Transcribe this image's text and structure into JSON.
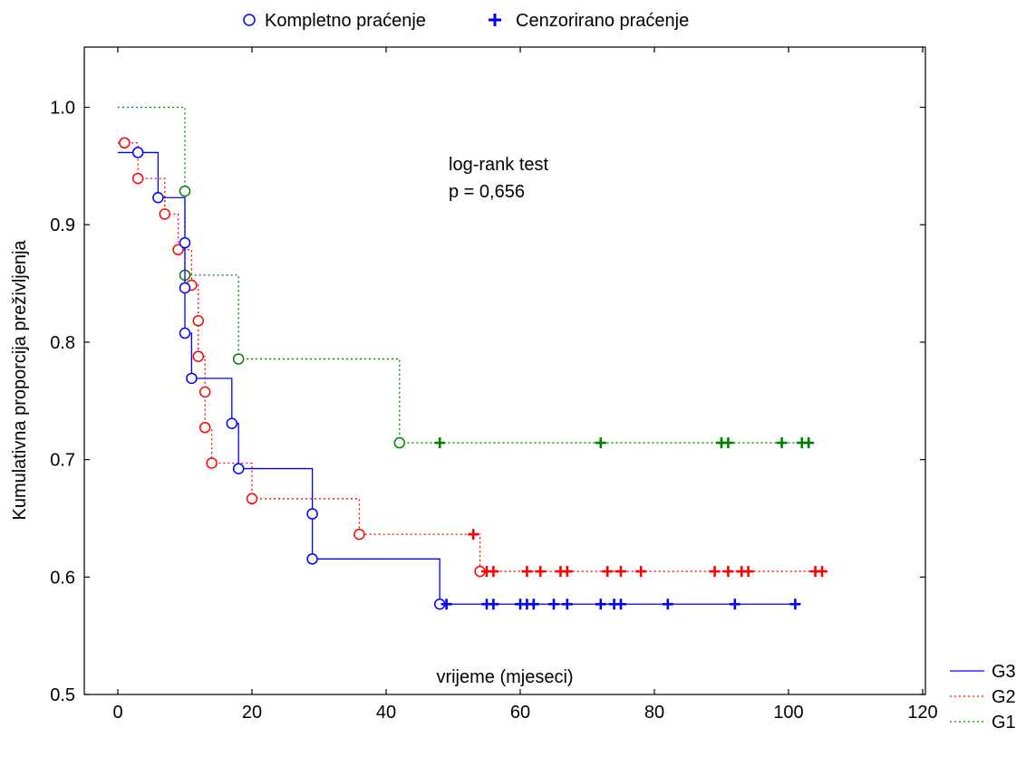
{
  "chart_data": {
    "type": "line",
    "title": "",
    "xlabel": "vrijeme (mjeseci)",
    "ylabel": "Kumulativna proporcija preživljenja",
    "xlim": [
      -5,
      120
    ],
    "ylim": [
      0.5,
      1.05
    ],
    "xticks": [
      0,
      20,
      40,
      60,
      80,
      100,
      120
    ],
    "xtick_labels": [
      "0",
      "20",
      "40",
      "60",
      "80",
      "100",
      "120"
    ],
    "yticks": [
      0.5,
      0.6,
      0.7,
      0.8,
      0.9,
      1.0
    ],
    "ytick_labels": [
      "0.5",
      "0.6",
      "0.7",
      "0.8",
      "0.9",
      "1.0"
    ],
    "marker_legend": {
      "complete_label": "Kompletno praćenje",
      "censored_label": "Cenzorirano praćenje"
    },
    "annotation": [
      "log-rank test",
      "p = 0,656"
    ],
    "series": [
      {
        "name": "G3",
        "color": "#0000ff",
        "line_style": "solid",
        "steps": [
          [
            0,
            0.9615
          ],
          [
            6,
            0.9231
          ],
          [
            10,
            0.8846
          ],
          [
            10,
            0.8462
          ],
          [
            10,
            0.8077
          ],
          [
            11,
            0.7692
          ],
          [
            17,
            0.7308
          ],
          [
            18,
            0.6923
          ],
          [
            29,
            0.6538
          ],
          [
            29,
            0.6154
          ],
          [
            48,
            0.5769
          ]
        ],
        "events": [
          3,
          6,
          10,
          10,
          10,
          11,
          17,
          18,
          29,
          29,
          48
        ],
        "events_y": [
          0.9615,
          0.9231,
          0.8846,
          0.8462,
          0.8077,
          0.7692,
          0.7308,
          0.6923,
          0.6538,
          0.6154,
          0.5769
        ],
        "censored": [
          49,
          55,
          56,
          60,
          61,
          62,
          65,
          67,
          72,
          74,
          75,
          82,
          92,
          101
        ],
        "end_x": 101
      },
      {
        "name": "G2",
        "color": "#ff0000",
        "line_style": "dotted",
        "steps": [
          [
            0,
            0.9697
          ],
          [
            3,
            0.9394
          ],
          [
            7,
            0.9091
          ],
          [
            9,
            0.8788
          ],
          [
            11,
            0.8485
          ],
          [
            12,
            0.8182
          ],
          [
            12,
            0.7879
          ],
          [
            13,
            0.7576
          ],
          [
            13,
            0.7273
          ],
          [
            14,
            0.697
          ],
          [
            20,
            0.6667
          ],
          [
            36,
            0.6364
          ],
          [
            54,
            0.6048
          ]
        ],
        "events": [
          1,
          3,
          7,
          9,
          11,
          12,
          12,
          13,
          13,
          14,
          20,
          36,
          54
        ],
        "events_y": [
          0.9697,
          0.9394,
          0.9091,
          0.8788,
          0.8485,
          0.8182,
          0.7879,
          0.7576,
          0.7273,
          0.697,
          0.6667,
          0.6364,
          0.6048
        ],
        "censored": [
          53,
          55,
          56,
          61,
          63,
          66,
          67,
          73,
          75,
          78,
          89,
          91,
          93,
          94,
          104,
          105
        ],
        "end_x": 105
      },
      {
        "name": "G1",
        "color": "#008000",
        "line_style": "dotted",
        "steps": [
          [
            0,
            1.0
          ],
          [
            10,
            0.9286
          ],
          [
            10,
            0.8571
          ],
          [
            18,
            0.7857
          ],
          [
            42,
            0.7143
          ]
        ],
        "events": [
          10,
          10,
          18,
          42
        ],
        "events_y": [
          0.9286,
          0.8571,
          0.7857,
          0.7143
        ],
        "censored": [
          48,
          72,
          90,
          91,
          99,
          102,
          103
        ],
        "end_x": 103
      }
    ]
  }
}
